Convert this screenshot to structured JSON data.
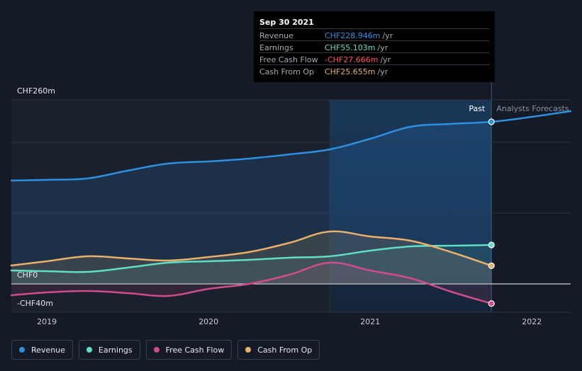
{
  "tooltip": {
    "date": "Sep 30 2021",
    "rows": [
      {
        "label": "Revenue",
        "value": "CHF228.946m",
        "unit": "/yr",
        "color": "#2d8fe0"
      },
      {
        "label": "Earnings",
        "value": "CHF55.103m",
        "unit": "/yr",
        "color": "#5fe0c6"
      },
      {
        "label": "Free Cash Flow",
        "value": "-CHF27.666m",
        "unit": "/yr",
        "color": "#ff4d5e"
      },
      {
        "label": "Cash From Op",
        "value": "CHF25.655m",
        "unit": "/yr",
        "color": "#eab06a"
      }
    ]
  },
  "labels": {
    "past": "Past",
    "forecast": "Analysts Forecasts"
  },
  "legend": [
    {
      "label": "Revenue",
      "color": "#2d8fe0"
    },
    {
      "label": "Earnings",
      "color": "#5fe0c6"
    },
    {
      "label": "Free Cash Flow",
      "color": "#d14b8e"
    },
    {
      "label": "Cash From Op",
      "color": "#eab06a"
    }
  ],
  "chart_data": {
    "type": "line",
    "y_tick_labels": [
      "CHF260m",
      "CHF0",
      "-CHF40m"
    ],
    "y_ticks": [
      260,
      0,
      -40
    ],
    "ylim": [
      -40,
      260
    ],
    "x_tick_labels": [
      "2019",
      "2020",
      "2021",
      "2022"
    ],
    "x_ticks": [
      2019,
      2020,
      2021,
      2022
    ],
    "xlim": [
      2018.78,
      2022.24
    ],
    "past_end": 2021.75,
    "highlight_start": 2020.75,
    "grid": true,
    "series": [
      {
        "name": "Revenue",
        "color": "#2d8fe0",
        "x": [
          2018.78,
          2019.0,
          2019.25,
          2019.5,
          2019.75,
          2020.0,
          2020.25,
          2020.5,
          2020.75,
          2021.0,
          2021.25,
          2021.5,
          2021.75,
          2022.0,
          2022.24
        ],
        "y": [
          146,
          147,
          149,
          160,
          170,
          173,
          177,
          183,
          190,
          205,
          222,
          226,
          229,
          236,
          244
        ]
      },
      {
        "name": "Earnings",
        "color": "#5fe0c6",
        "x": [
          2018.78,
          2019.0,
          2019.25,
          2019.5,
          2019.75,
          2020.0,
          2020.25,
          2020.5,
          2020.75,
          2021.0,
          2021.25,
          2021.5,
          2021.75
        ],
        "y": [
          19,
          18,
          17,
          23,
          30,
          32,
          34,
          37,
          39,
          47,
          53,
          54,
          55
        ]
      },
      {
        "name": "Free Cash Flow",
        "color": "#d14b8e",
        "x": [
          2018.78,
          2019.0,
          2019.25,
          2019.5,
          2019.75,
          2020.0,
          2020.25,
          2020.5,
          2020.75,
          2021.0,
          2021.25,
          2021.5,
          2021.75
        ],
        "y": [
          -16,
          -12,
          -10,
          -13,
          -17,
          -7,
          0,
          13,
          30,
          19,
          8,
          -11,
          -27.7
        ]
      },
      {
        "name": "Cash From Op",
        "color": "#eab06a",
        "x": [
          2018.78,
          2019.0,
          2019.25,
          2019.5,
          2019.75,
          2020.0,
          2020.25,
          2020.5,
          2020.75,
          2021.0,
          2021.25,
          2021.5,
          2021.75
        ],
        "y": [
          26,
          32,
          39,
          36,
          33,
          38,
          45,
          58,
          74,
          67,
          61,
          45,
          25.7
        ]
      }
    ]
  }
}
